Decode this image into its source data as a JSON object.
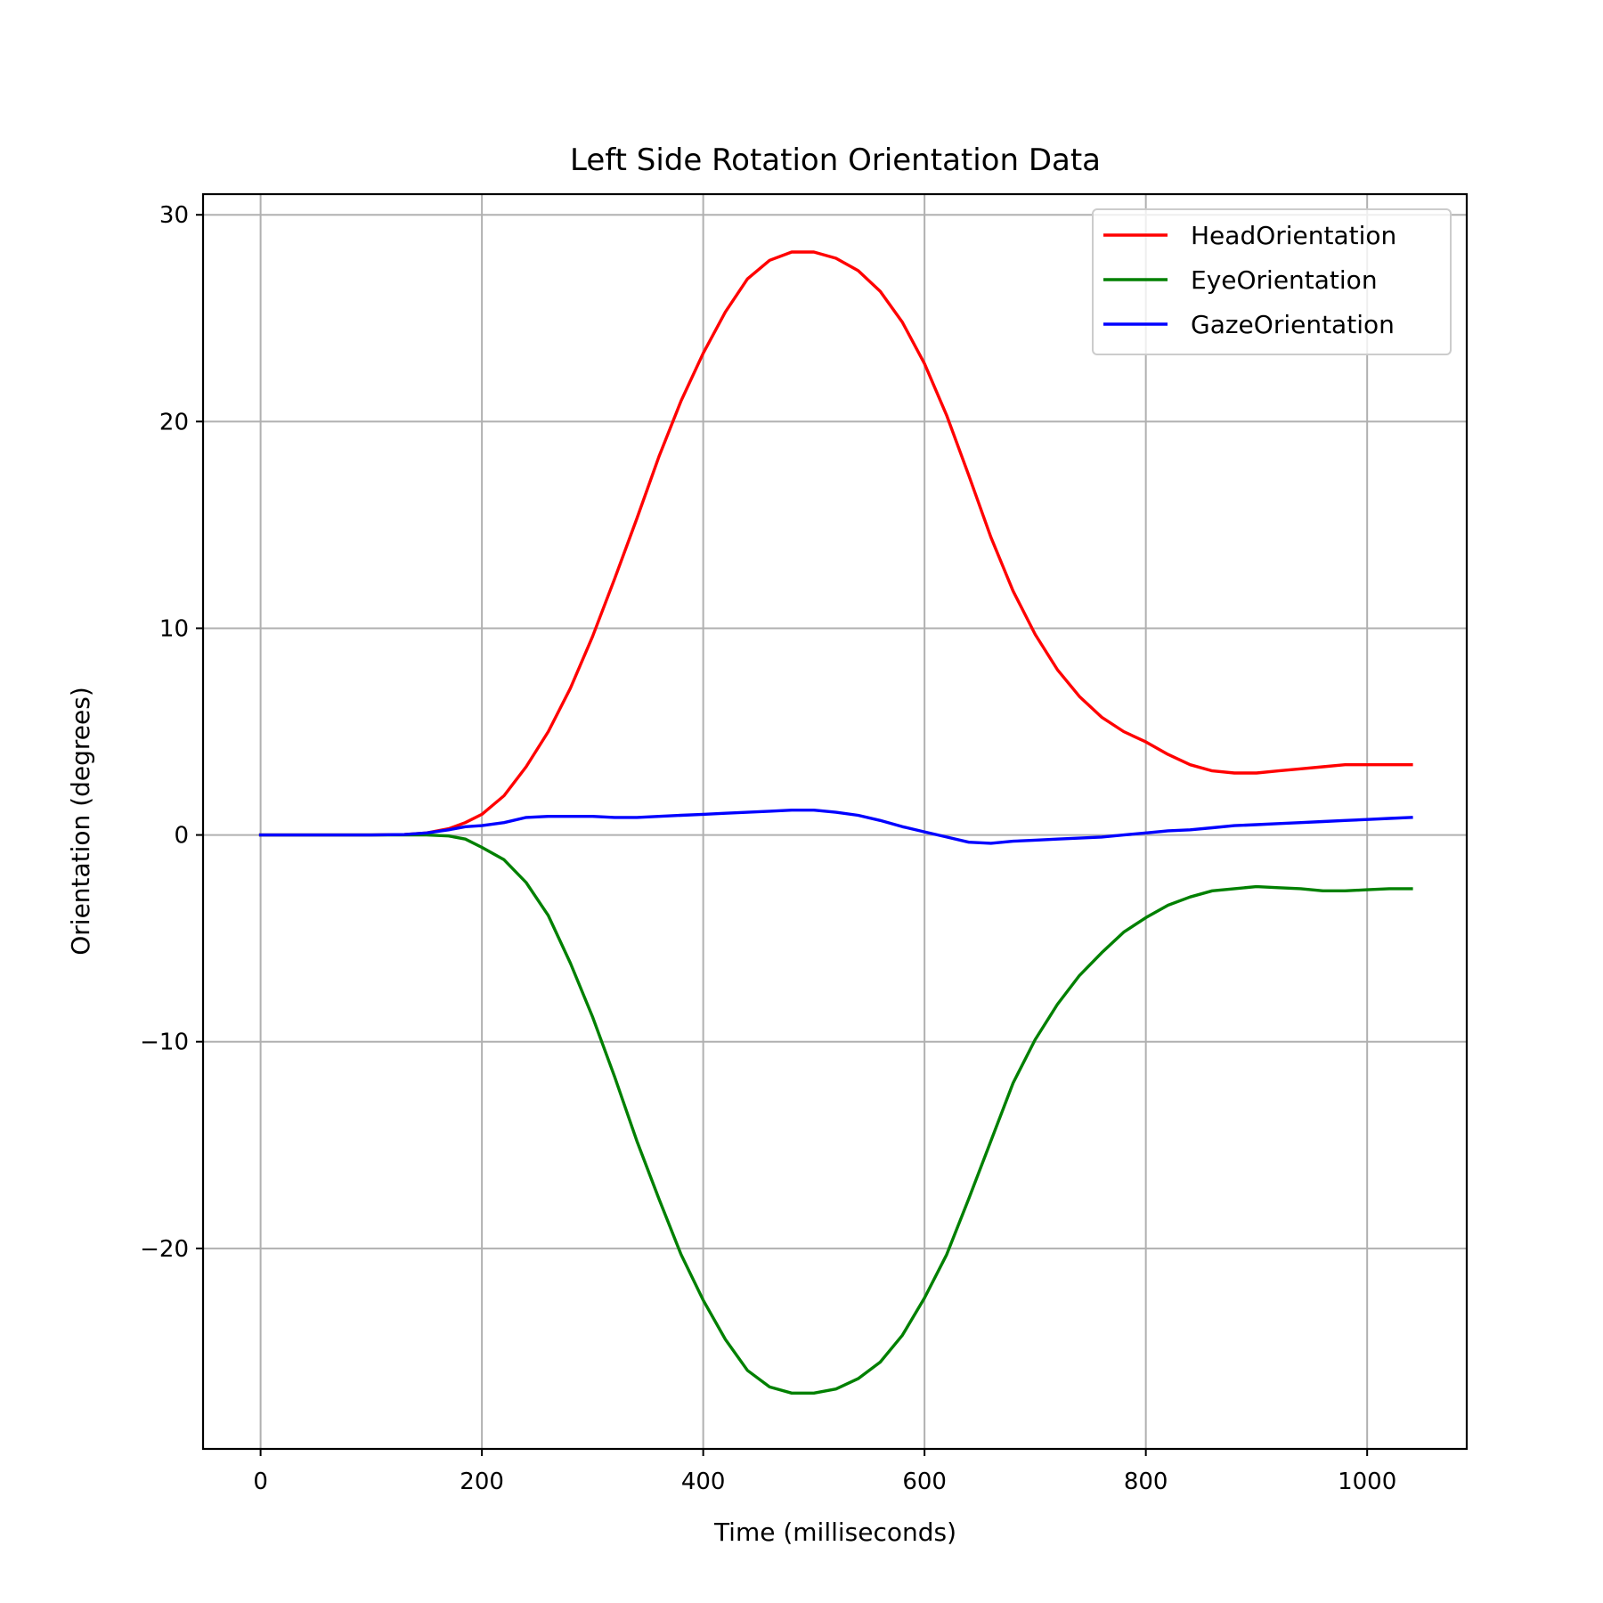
{
  "chart_data": {
    "type": "line",
    "title": "Left Side Rotation Orientation Data",
    "xlabel": "Time (milliseconds)",
    "ylabel": "Orientation (degrees)",
    "xlim": [
      -52,
      1090
    ],
    "ylim": [
      -29.7,
      31
    ],
    "xticks": [
      0,
      200,
      400,
      600,
      800,
      1000
    ],
    "xtick_labels": [
      "0",
      "200",
      "400",
      "600",
      "800",
      "1000"
    ],
    "yticks": [
      30,
      20,
      10,
      0,
      -10,
      -20
    ],
    "ytick_labels": [
      "30",
      "20",
      "10",
      "0",
      "−10",
      "−20"
    ],
    "grid": true,
    "legend_position": "top-right",
    "series": [
      {
        "name": "HeadOrientation",
        "color": "#ff0000",
        "points": [
          [
            0,
            0
          ],
          [
            50,
            0
          ],
          [
            100,
            0
          ],
          [
            130,
            0.02
          ],
          [
            150,
            0.1
          ],
          [
            170,
            0.3
          ],
          [
            185,
            0.6
          ],
          [
            200,
            1.0
          ],
          [
            220,
            1.9
          ],
          [
            240,
            3.3
          ],
          [
            260,
            5.0
          ],
          [
            280,
            7.1
          ],
          [
            300,
            9.6
          ],
          [
            320,
            12.4
          ],
          [
            340,
            15.3
          ],
          [
            360,
            18.3
          ],
          [
            380,
            21.0
          ],
          [
            400,
            23.3
          ],
          [
            420,
            25.3
          ],
          [
            440,
            26.9
          ],
          [
            460,
            27.8
          ],
          [
            480,
            28.2
          ],
          [
            500,
            28.2
          ],
          [
            520,
            27.9
          ],
          [
            540,
            27.3
          ],
          [
            560,
            26.3
          ],
          [
            580,
            24.8
          ],
          [
            600,
            22.8
          ],
          [
            620,
            20.3
          ],
          [
            640,
            17.4
          ],
          [
            660,
            14.4
          ],
          [
            680,
            11.8
          ],
          [
            700,
            9.7
          ],
          [
            720,
            8.0
          ],
          [
            740,
            6.7
          ],
          [
            760,
            5.7
          ],
          [
            780,
            5.0
          ],
          [
            800,
            4.5
          ],
          [
            820,
            3.9
          ],
          [
            840,
            3.4
          ],
          [
            860,
            3.1
          ],
          [
            880,
            3.0
          ],
          [
            900,
            3.0
          ],
          [
            920,
            3.1
          ],
          [
            940,
            3.2
          ],
          [
            960,
            3.3
          ],
          [
            980,
            3.4
          ],
          [
            1000,
            3.4
          ],
          [
            1020,
            3.4
          ],
          [
            1040,
            3.4
          ]
        ]
      },
      {
        "name": "EyeOrientation",
        "color": "#008000",
        "points": [
          [
            0,
            0
          ],
          [
            50,
            0
          ],
          [
            100,
            0
          ],
          [
            130,
            0
          ],
          [
            150,
            0
          ],
          [
            170,
            -0.05
          ],
          [
            185,
            -0.2
          ],
          [
            200,
            -0.6
          ],
          [
            220,
            -1.2
          ],
          [
            240,
            -2.3
          ],
          [
            260,
            -3.9
          ],
          [
            280,
            -6.2
          ],
          [
            300,
            -8.8
          ],
          [
            320,
            -11.7
          ],
          [
            340,
            -14.8
          ],
          [
            360,
            -17.6
          ],
          [
            380,
            -20.3
          ],
          [
            400,
            -22.5
          ],
          [
            420,
            -24.4
          ],
          [
            440,
            -25.9
          ],
          [
            460,
            -26.7
          ],
          [
            480,
            -27.0
          ],
          [
            500,
            -27.0
          ],
          [
            520,
            -26.8
          ],
          [
            540,
            -26.3
          ],
          [
            560,
            -25.5
          ],
          [
            580,
            -24.2
          ],
          [
            600,
            -22.4
          ],
          [
            620,
            -20.3
          ],
          [
            640,
            -17.6
          ],
          [
            660,
            -14.8
          ],
          [
            680,
            -12.0
          ],
          [
            700,
            -9.9
          ],
          [
            720,
            -8.2
          ],
          [
            740,
            -6.8
          ],
          [
            760,
            -5.7
          ],
          [
            780,
            -4.7
          ],
          [
            800,
            -4.0
          ],
          [
            820,
            -3.4
          ],
          [
            840,
            -3.0
          ],
          [
            860,
            -2.7
          ],
          [
            880,
            -2.6
          ],
          [
            900,
            -2.5
          ],
          [
            920,
            -2.55
          ],
          [
            940,
            -2.6
          ],
          [
            960,
            -2.7
          ],
          [
            980,
            -2.7
          ],
          [
            1000,
            -2.65
          ],
          [
            1020,
            -2.6
          ],
          [
            1040,
            -2.6
          ]
        ]
      },
      {
        "name": "GazeOrientation",
        "color": "#0000ff",
        "points": [
          [
            0,
            0
          ],
          [
            50,
            0
          ],
          [
            100,
            0
          ],
          [
            130,
            0.02
          ],
          [
            150,
            0.1
          ],
          [
            170,
            0.25
          ],
          [
            185,
            0.4
          ],
          [
            200,
            0.45
          ],
          [
            220,
            0.6
          ],
          [
            240,
            0.85
          ],
          [
            260,
            0.9
          ],
          [
            280,
            0.9
          ],
          [
            300,
            0.9
          ],
          [
            320,
            0.85
          ],
          [
            340,
            0.85
          ],
          [
            360,
            0.9
          ],
          [
            380,
            0.95
          ],
          [
            400,
            1.0
          ],
          [
            420,
            1.05
          ],
          [
            440,
            1.1
          ],
          [
            460,
            1.15
          ],
          [
            480,
            1.2
          ],
          [
            500,
            1.2
          ],
          [
            520,
            1.1
          ],
          [
            540,
            0.95
          ],
          [
            560,
            0.7
          ],
          [
            580,
            0.4
          ],
          [
            600,
            0.15
          ],
          [
            620,
            -0.1
          ],
          [
            640,
            -0.35
          ],
          [
            660,
            -0.4
          ],
          [
            680,
            -0.3
          ],
          [
            700,
            -0.25
          ],
          [
            720,
            -0.2
          ],
          [
            740,
            -0.15
          ],
          [
            760,
            -0.1
          ],
          [
            780,
            0.0
          ],
          [
            800,
            0.1
          ],
          [
            820,
            0.2
          ],
          [
            840,
            0.25
          ],
          [
            860,
            0.35
          ],
          [
            880,
            0.45
          ],
          [
            900,
            0.5
          ],
          [
            920,
            0.55
          ],
          [
            940,
            0.6
          ],
          [
            960,
            0.65
          ],
          [
            980,
            0.7
          ],
          [
            1000,
            0.75
          ],
          [
            1020,
            0.8
          ],
          [
            1040,
            0.85
          ]
        ]
      }
    ]
  }
}
